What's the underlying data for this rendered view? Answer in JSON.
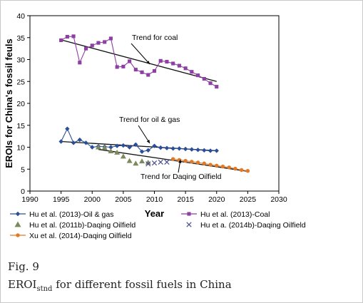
{
  "figure": {
    "label": "Fig. 9",
    "caption_main": "EROI",
    "caption_sub": "stnd",
    "caption_rest": " for different fossil fuels in China"
  },
  "chart_data": {
    "type": "scatter",
    "xlabel": "Year",
    "ylabel": "EROIs for China's fossil feuls",
    "xlim": [
      1990,
      2030
    ],
    "ylim": [
      0,
      40
    ],
    "xticks": [
      1990,
      1995,
      2000,
      2005,
      2010,
      2015,
      2020,
      2025,
      2030
    ],
    "yticks": [
      0,
      5,
      10,
      15,
      20,
      25,
      30,
      35,
      40
    ],
    "grid": false,
    "legend_position": "bottom",
    "annotations": [
      {
        "text": "Trend for coal"
      },
      {
        "text": "Trend for oil & gas"
      },
      {
        "text": "Trend for Daqing Oilfield"
      }
    ],
    "trend_lines": [
      {
        "name": "Trend for coal",
        "x": [
          1995,
          2020
        ],
        "y": [
          34.5,
          25
        ]
      },
      {
        "name": "Trend for oil & gas",
        "x": [
          1995,
          2020
        ],
        "y": [
          11.3,
          9.2
        ]
      },
      {
        "name": "Trend for Daqing Oilfield",
        "x": [
          2001,
          2025
        ],
        "y": [
          9.5,
          4.5
        ]
      }
    ],
    "series": [
      {
        "name": "Hu et al. (2013)-Oil & gas",
        "color": "#2b4e9b",
        "marker": "diamond",
        "line": true,
        "x": [
          1995,
          1996,
          1997,
          1998,
          1999,
          2000,
          2001,
          2002,
          2003,
          2004,
          2005,
          2006,
          2007,
          2008,
          2009,
          2010,
          2011,
          2012,
          2013,
          2014,
          2015,
          2016,
          2017,
          2018,
          2019,
          2020
        ],
        "y": [
          11.3,
          14.2,
          11.0,
          11.7,
          11.0,
          10.0,
          10.2,
          10.1,
          10.0,
          10.3,
          10.4,
          10.0,
          10.6,
          9.0,
          9.3,
          10.3,
          9.9,
          9.8,
          9.7,
          9.7,
          9.6,
          9.5,
          9.4,
          9.3,
          9.2,
          9.2
        ]
      },
      {
        "name": "Hu et al. (2013)-Coal",
        "color": "#8e3fa3",
        "marker": "square",
        "line": true,
        "x": [
          1995,
          1996,
          1997,
          1998,
          1999,
          2000,
          2001,
          2002,
          2003,
          2004,
          2005,
          2006,
          2007,
          2008,
          2009,
          2010,
          2011,
          2012,
          2013,
          2014,
          2015,
          2016,
          2017,
          2018,
          2019,
          2020
        ],
        "y": [
          34.4,
          35.2,
          35.3,
          29.3,
          32.5,
          33.2,
          33.8,
          34.0,
          34.8,
          28.3,
          28.4,
          29.6,
          27.7,
          27.1,
          26.5,
          27.4,
          29.7,
          29.5,
          29.1,
          28.6,
          28.0,
          27.2,
          26.4,
          25.6,
          24.6,
          23.8
        ]
      },
      {
        "name": "Hu et al. (2011b)-Daqing Oilfield",
        "color": "#7b8a5a",
        "marker": "triangle",
        "line": false,
        "x": [
          2001,
          2002,
          2003,
          2004,
          2005,
          2006,
          2007,
          2008,
          2009
        ],
        "y": [
          10.0,
          9.9,
          9.1,
          8.8,
          7.9,
          6.9,
          6.3,
          6.8,
          6.5
        ]
      },
      {
        "name": "Hu et a. (2014b)-Daqing Oilfield",
        "color": "#4a4f8f",
        "marker": "x",
        "line": false,
        "x": [
          2009,
          2010,
          2011,
          2012
        ],
        "y": [
          6.2,
          6.4,
          6.6,
          6.6
        ]
      },
      {
        "name": "Xu et al. (2014)-Daqing Oilfield",
        "color": "#e07a28",
        "marker": "circle",
        "line": true,
        "x": [
          2013,
          2014,
          2015,
          2016,
          2017,
          2018,
          2019,
          2020,
          2021,
          2022,
          2023,
          2024,
          2025
        ],
        "y": [
          7.3,
          7.1,
          6.9,
          6.7,
          6.5,
          6.3,
          6.0,
          5.8,
          5.6,
          5.4,
          5.1,
          4.8,
          4.6
        ]
      }
    ]
  }
}
